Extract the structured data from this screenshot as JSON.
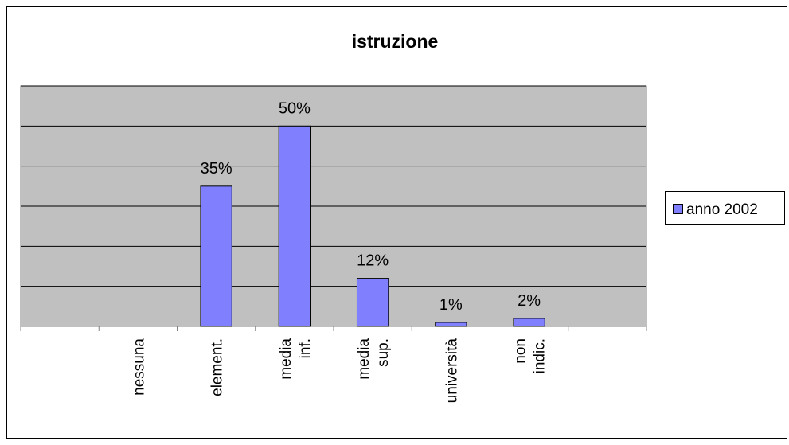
{
  "chart_data": {
    "type": "bar",
    "title": "istruzione",
    "categories": [
      null,
      [
        "nessuna"
      ],
      [
        "element."
      ],
      [
        "media",
        "inf."
      ],
      [
        "media",
        "sup."
      ],
      [
        "università"
      ],
      [
        "non",
        "indic."
      ],
      null
    ],
    "series": [
      {
        "name": "anno 2002",
        "color": "#8080ff",
        "values": [
          null,
          null,
          35,
          50,
          12,
          1,
          2,
          null
        ],
        "value_labels": [
          null,
          null,
          "35%",
          "50%",
          "12%",
          "1%",
          "2%",
          null
        ]
      }
    ],
    "ylim": [
      0,
      60
    ],
    "yticks": [
      0,
      10,
      20,
      30,
      40,
      50,
      60
    ],
    "grid": true,
    "legend": "right"
  }
}
